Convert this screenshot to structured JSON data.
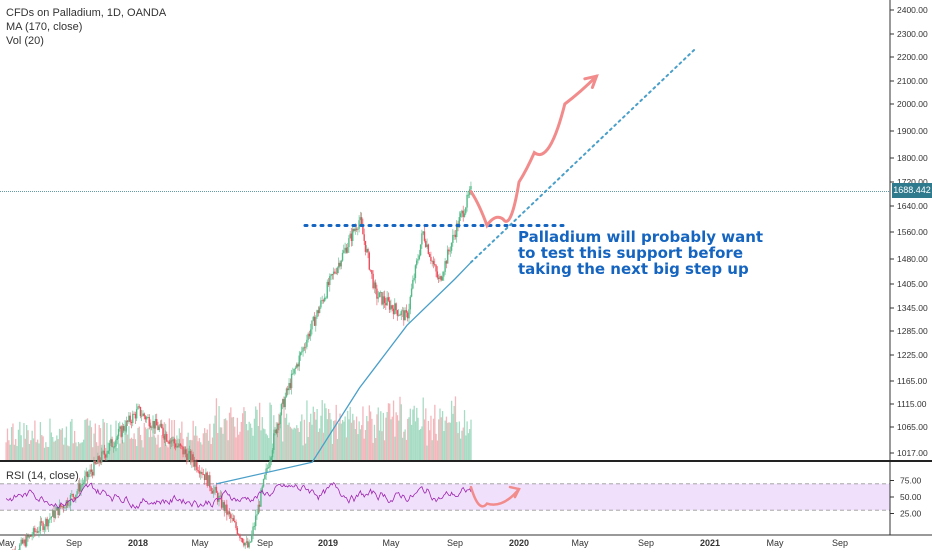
{
  "legend": {
    "title": "CFDs on Palladium, 1D, OANDA",
    "ma": "MA (170, close)",
    "vol": "Vol (20)"
  },
  "rsi_legend": "RSI (14, close)",
  "annotation": "Palladium will probably want\nto test this support before\ntaking the next big step up",
  "current_price": "1688.442",
  "colors": {
    "up": "#53b987",
    "down": "#eb4d5c",
    "vol_up": "#a7dcc4",
    "vol_down": "#f3b6bb",
    "ma": "#4a9fc9",
    "rsi": "#9c27b0",
    "rsi_band": "#f1e0fb",
    "projection": "#f28b8b",
    "support": "#1565c0",
    "trend": "#4a9fc9",
    "price_line": "#2f7a8c"
  },
  "chart_data": [
    {
      "type": "candlestick",
      "title": "CFDs on Palladium, 1D, OANDA",
      "y_ticks": [
        "2400.00",
        "2300.00",
        "2200.00",
        "2100.00",
        "2000.00",
        "1900.00",
        "1800.00",
        "1720.00",
        "1640.00",
        "1560.00",
        "1480.00",
        "1405.00",
        "1345.00",
        "1285.00",
        "1225.00",
        "1165.00",
        "1115.00",
        "1065.00",
        "1017.00"
      ],
      "x_ticks": [
        "May",
        "Sep",
        "2018",
        "May",
        "Sep",
        "2019",
        "May",
        "Sep",
        "2020",
        "May",
        "Sep",
        "2021",
        "May",
        "Sep"
      ],
      "current_price": 1688.442,
      "support_level": 1580,
      "price_path": [
        {
          "x": "2017-05",
          "y": 820
        },
        {
          "x": "2017-09",
          "y": 940
        },
        {
          "x": "2018-01",
          "y": 1100
        },
        {
          "x": "2018-05",
          "y": 990
        },
        {
          "x": "2018-08",
          "y": 840
        },
        {
          "x": "2018-10",
          "y": 1100
        },
        {
          "x": "2018-12",
          "y": 1300
        },
        {
          "x": "2019-03",
          "y": 1600
        },
        {
          "x": "2019-04",
          "y": 1380
        },
        {
          "x": "2019-06",
          "y": 1320
        },
        {
          "x": "2019-07",
          "y": 1560
        },
        {
          "x": "2019-08",
          "y": 1410
        },
        {
          "x": "2019-09",
          "y": 1560
        },
        {
          "x": "2019-10",
          "y": 1688
        }
      ],
      "ma_170": [
        {
          "x": "2018-06",
          "y": 960
        },
        {
          "x": "2018-12",
          "y": 1000
        },
        {
          "x": "2019-03",
          "y": 1150
        },
        {
          "x": "2019-06",
          "y": 1300
        },
        {
          "x": "2019-09",
          "y": 1420
        },
        {
          "x": "2019-10",
          "y": 1470
        }
      ],
      "projection": [
        {
          "x": "2019-10",
          "y": 1688
        },
        {
          "x": "2019-11",
          "y": 1580
        },
        {
          "x": "2019-12",
          "y": 1600
        },
        {
          "x": "2020-01",
          "y": 1720
        },
        {
          "x": "2020-02",
          "y": 1820
        },
        {
          "x": "2020-04",
          "y": 2000
        },
        {
          "x": "2020-06",
          "y": 2120
        }
      ],
      "trendline": [
        {
          "x": "2019-10",
          "y": 1470
        },
        {
          "x": "2020-12",
          "y": 2230
        }
      ]
    },
    {
      "type": "line",
      "title": "RSI (14, close)",
      "y_ticks": [
        "75.00",
        "50.00",
        "25.00"
      ],
      "upper_band": 70,
      "lower_band": 30,
      "projection": [
        {
          "x": "2019-10",
          "y": 65
        },
        {
          "x": "2019-11",
          "y": 40
        },
        {
          "x": "2020-01",
          "y": 62
        }
      ]
    }
  ]
}
